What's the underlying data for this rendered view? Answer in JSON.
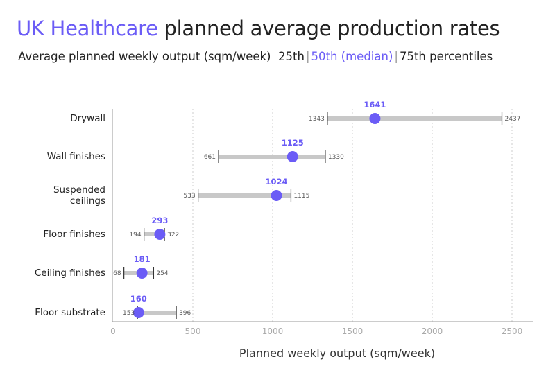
{
  "title": {
    "accent": "UK Healthcare",
    "rest": " planned average production rates"
  },
  "subtitle": {
    "main": "Average planned weekly output (sqm/week)",
    "p25": "25th",
    "sep1": "|",
    "p50": "50th (median)",
    "sep2": "|",
    "p75": "75th percentiles"
  },
  "colors": {
    "accent": "#6b5cf6",
    "range_bar": "#c8c8c8",
    "whisker": "#333333",
    "grid": "#cccccc"
  },
  "chart_data": {
    "type": "range-dot",
    "xlabel": "Planned weekly output (sqm/week)",
    "xlim": [
      0,
      2700
    ],
    "xticks": [
      0,
      500,
      1000,
      1500,
      2000,
      2500
    ],
    "grid": "vertical dashed",
    "categories": [
      {
        "label": [
          "Drywall"
        ],
        "p25": 1343,
        "p50": 1641,
        "p75": 2437
      },
      {
        "label": [
          "Wall finishes"
        ],
        "p25": 661,
        "p50": 1125,
        "p75": 1330
      },
      {
        "label": [
          "Suspended",
          "ceilings"
        ],
        "p25": 533,
        "p50": 1024,
        "p75": 1115
      },
      {
        "label": [
          "Floor finishes"
        ],
        "p25": 194,
        "p50": 293,
        "p75": 322
      },
      {
        "label": [
          "Ceiling finishes"
        ],
        "p25": 68,
        "p50": 181,
        "p75": 254
      },
      {
        "label": [
          "Floor substrate"
        ],
        "p25": 153,
        "p50": 160,
        "p75": 396
      }
    ]
  }
}
